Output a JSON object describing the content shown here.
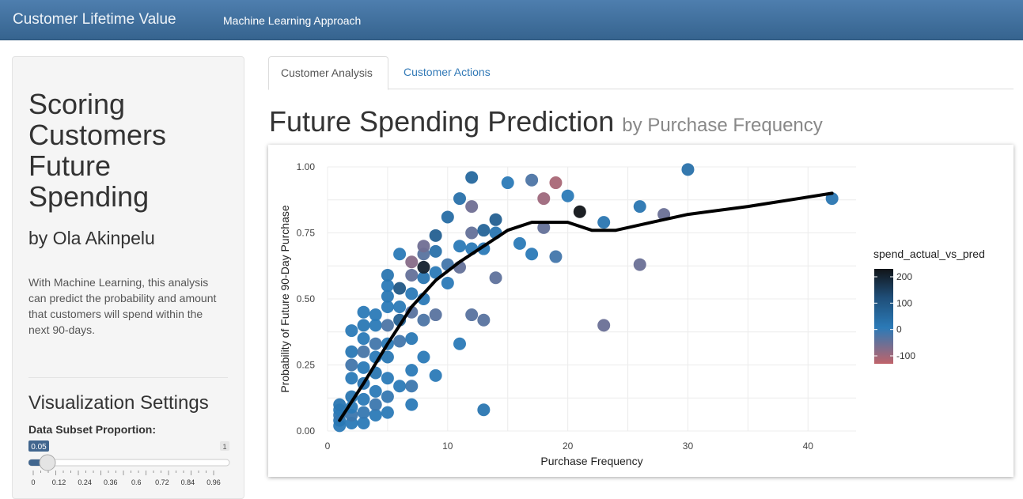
{
  "navbar": {
    "brand": "Customer Lifetime Value",
    "link": "Machine Learning Approach"
  },
  "sidebar": {
    "title": "Scoring Customers Future Spending",
    "author": "by Ola Akinpelu",
    "description": "With Machine Learning, this analysis can predict the probability and amount that customers will spend within the next 90-days.",
    "settings_heading": "Visualization Settings",
    "slider": {
      "label": "Data Subset Proportion:",
      "value": 0.05,
      "min": 0,
      "max": 1,
      "value_label": "0.05",
      "max_label": "1",
      "ticks": [
        "0",
        "0.12",
        "0.24",
        "0.36",
        "0.6",
        "0.72",
        "0.84",
        "0.96"
      ]
    }
  },
  "tabs": [
    {
      "label": "Customer Analysis",
      "active": true
    },
    {
      "label": "Customer Actions",
      "active": false
    }
  ],
  "main": {
    "title": "Future Spending Prediction",
    "subtitle": "by Purchase Frequency"
  },
  "colors": {
    "navbar": "#3d6f9f",
    "link_blue": "#337ab7",
    "trend": "#000000",
    "scale_high": "#111418",
    "scale_mid": "#2b7ab7",
    "scale_low": "#c0636a"
  },
  "chart_data": {
    "type": "scatter",
    "xlabel": "Purchase Frequency",
    "ylabel": "Probability of Future 90-Day Purchase",
    "xlim": [
      0,
      44
    ],
    "ylim": [
      0,
      1.0
    ],
    "xticks": [
      0,
      10,
      20,
      30,
      40
    ],
    "yticks": [
      "0.00",
      "0.25",
      "0.50",
      "0.75",
      "1.00"
    ],
    "grid": true,
    "color_legend": {
      "title": "spend_actual_vs_pred",
      "ticks": [
        200,
        100,
        0,
        -100
      ],
      "range": [
        -130,
        230
      ]
    },
    "points": [
      {
        "x": 1,
        "y": 0.02,
        "c": 0
      },
      {
        "x": 1,
        "y": 0.04,
        "c": 5
      },
      {
        "x": 1,
        "y": 0.06,
        "c": -10
      },
      {
        "x": 1,
        "y": 0.08,
        "c": 0
      },
      {
        "x": 1,
        "y": 0.1,
        "c": 8
      },
      {
        "x": 2,
        "y": 0.03,
        "c": 0
      },
      {
        "x": 2,
        "y": 0.06,
        "c": -15
      },
      {
        "x": 2,
        "y": 0.09,
        "c": 0
      },
      {
        "x": 2,
        "y": 0.13,
        "c": 10
      },
      {
        "x": 2,
        "y": 0.2,
        "c": 0
      },
      {
        "x": 2,
        "y": 0.25,
        "c": -20
      },
      {
        "x": 2,
        "y": 0.3,
        "c": 5
      },
      {
        "x": 2,
        "y": 0.38,
        "c": 0
      },
      {
        "x": 3,
        "y": 0.03,
        "c": 0
      },
      {
        "x": 3,
        "y": 0.07,
        "c": -10
      },
      {
        "x": 3,
        "y": 0.12,
        "c": 0
      },
      {
        "x": 3,
        "y": 0.18,
        "c": 15
      },
      {
        "x": 3,
        "y": 0.24,
        "c": 0
      },
      {
        "x": 3,
        "y": 0.3,
        "c": -25
      },
      {
        "x": 3,
        "y": 0.35,
        "c": 0
      },
      {
        "x": 3,
        "y": 0.4,
        "c": 5
      },
      {
        "x": 3,
        "y": 0.45,
        "c": 0
      },
      {
        "x": 4,
        "y": 0.06,
        "c": 0
      },
      {
        "x": 4,
        "y": 0.1,
        "c": -15
      },
      {
        "x": 4,
        "y": 0.15,
        "c": 0
      },
      {
        "x": 4,
        "y": 0.22,
        "c": 10
      },
      {
        "x": 4,
        "y": 0.28,
        "c": 0
      },
      {
        "x": 4,
        "y": 0.33,
        "c": -20
      },
      {
        "x": 4,
        "y": 0.4,
        "c": 0
      },
      {
        "x": 4,
        "y": 0.44,
        "c": 0
      },
      {
        "x": 5,
        "y": 0.07,
        "c": 0
      },
      {
        "x": 5,
        "y": 0.13,
        "c": -10
      },
      {
        "x": 5,
        "y": 0.2,
        "c": 0
      },
      {
        "x": 5,
        "y": 0.28,
        "c": 5
      },
      {
        "x": 5,
        "y": 0.33,
        "c": 0
      },
      {
        "x": 5,
        "y": 0.4,
        "c": -30
      },
      {
        "x": 5,
        "y": 0.47,
        "c": 0
      },
      {
        "x": 5,
        "y": 0.51,
        "c": 5
      },
      {
        "x": 5,
        "y": 0.55,
        "c": 0
      },
      {
        "x": 5,
        "y": 0.59,
        "c": 10
      },
      {
        "x": 6,
        "y": 0.17,
        "c": 0
      },
      {
        "x": 6,
        "y": 0.34,
        "c": -20
      },
      {
        "x": 6,
        "y": 0.42,
        "c": 60
      },
      {
        "x": 6,
        "y": 0.47,
        "c": 0
      },
      {
        "x": 6,
        "y": 0.54,
        "c": 80
      },
      {
        "x": 6,
        "y": 0.67,
        "c": 0
      },
      {
        "x": 7,
        "y": 0.1,
        "c": 0
      },
      {
        "x": 7,
        "y": 0.17,
        "c": -15
      },
      {
        "x": 7,
        "y": 0.23,
        "c": 0
      },
      {
        "x": 7,
        "y": 0.35,
        "c": 5
      },
      {
        "x": 7,
        "y": 0.45,
        "c": -40
      },
      {
        "x": 7,
        "y": 0.52,
        "c": 0
      },
      {
        "x": 7,
        "y": 0.59,
        "c": -50
      },
      {
        "x": 7,
        "y": 0.64,
        "c": -80
      },
      {
        "x": 8,
        "y": 0.28,
        "c": 0
      },
      {
        "x": 8,
        "y": 0.42,
        "c": -30
      },
      {
        "x": 8,
        "y": 0.5,
        "c": 0
      },
      {
        "x": 8,
        "y": 0.58,
        "c": 10
      },
      {
        "x": 8,
        "y": 0.62,
        "c": 200
      },
      {
        "x": 8,
        "y": 0.67,
        "c": -40
      },
      {
        "x": 8,
        "y": 0.7,
        "c": -60
      },
      {
        "x": 9,
        "y": 0.21,
        "c": 0
      },
      {
        "x": 9,
        "y": 0.44,
        "c": -40
      },
      {
        "x": 9,
        "y": 0.6,
        "c": 0
      },
      {
        "x": 9,
        "y": 0.68,
        "c": 20
      },
      {
        "x": 9,
        "y": 0.74,
        "c": 60
      },
      {
        "x": 10,
        "y": 0.56,
        "c": 0
      },
      {
        "x": 10,
        "y": 0.63,
        "c": -20
      },
      {
        "x": 10,
        "y": 0.81,
        "c": 30
      },
      {
        "x": 11,
        "y": 0.33,
        "c": 0
      },
      {
        "x": 11,
        "y": 0.62,
        "c": -50
      },
      {
        "x": 11,
        "y": 0.7,
        "c": 0
      },
      {
        "x": 11,
        "y": 0.88,
        "c": 20
      },
      {
        "x": 12,
        "y": 0.44,
        "c": -40
      },
      {
        "x": 12,
        "y": 0.69,
        "c": 0
      },
      {
        "x": 12,
        "y": 0.75,
        "c": -50
      },
      {
        "x": 12,
        "y": 0.85,
        "c": -60
      },
      {
        "x": 12,
        "y": 0.96,
        "c": 40
      },
      {
        "x": 13,
        "y": 0.08,
        "c": 10
      },
      {
        "x": 13,
        "y": 0.42,
        "c": -40
      },
      {
        "x": 13,
        "y": 0.69,
        "c": 0
      },
      {
        "x": 13,
        "y": 0.76,
        "c": 50
      },
      {
        "x": 14,
        "y": 0.58,
        "c": -45
      },
      {
        "x": 14,
        "y": 0.75,
        "c": 10
      },
      {
        "x": 14,
        "y": 0.8,
        "c": 60
      },
      {
        "x": 15,
        "y": 0.94,
        "c": 0
      },
      {
        "x": 16,
        "y": 0.71,
        "c": 0
      },
      {
        "x": 17,
        "y": 0.67,
        "c": 0
      },
      {
        "x": 17,
        "y": 0.95,
        "c": -30
      },
      {
        "x": 18,
        "y": 0.77,
        "c": -50
      },
      {
        "x": 18,
        "y": 0.88,
        "c": -100
      },
      {
        "x": 19,
        "y": 0.66,
        "c": -20
      },
      {
        "x": 19,
        "y": 0.94,
        "c": -110
      },
      {
        "x": 20,
        "y": 0.89,
        "c": 0
      },
      {
        "x": 21,
        "y": 0.83,
        "c": 230
      },
      {
        "x": 23,
        "y": 0.4,
        "c": -55
      },
      {
        "x": 23,
        "y": 0.79,
        "c": 10
      },
      {
        "x": 26,
        "y": 0.63,
        "c": -55
      },
      {
        "x": 26,
        "y": 0.85,
        "c": 10
      },
      {
        "x": 28,
        "y": 0.82,
        "c": -55
      },
      {
        "x": 30,
        "y": 0.99,
        "c": 20
      },
      {
        "x": 42,
        "y": 0.88,
        "c": 10
      }
    ],
    "trend": [
      {
        "x": 1,
        "y": 0.04
      },
      {
        "x": 3,
        "y": 0.18
      },
      {
        "x": 5,
        "y": 0.33
      },
      {
        "x": 7,
        "y": 0.47
      },
      {
        "x": 9,
        "y": 0.57
      },
      {
        "x": 11,
        "y": 0.64
      },
      {
        "x": 13,
        "y": 0.7
      },
      {
        "x": 15,
        "y": 0.76
      },
      {
        "x": 17,
        "y": 0.79
      },
      {
        "x": 20,
        "y": 0.79
      },
      {
        "x": 22,
        "y": 0.76
      },
      {
        "x": 24,
        "y": 0.76
      },
      {
        "x": 27,
        "y": 0.79
      },
      {
        "x": 30,
        "y": 0.82
      },
      {
        "x": 35,
        "y": 0.85
      },
      {
        "x": 42,
        "y": 0.9
      }
    ]
  }
}
